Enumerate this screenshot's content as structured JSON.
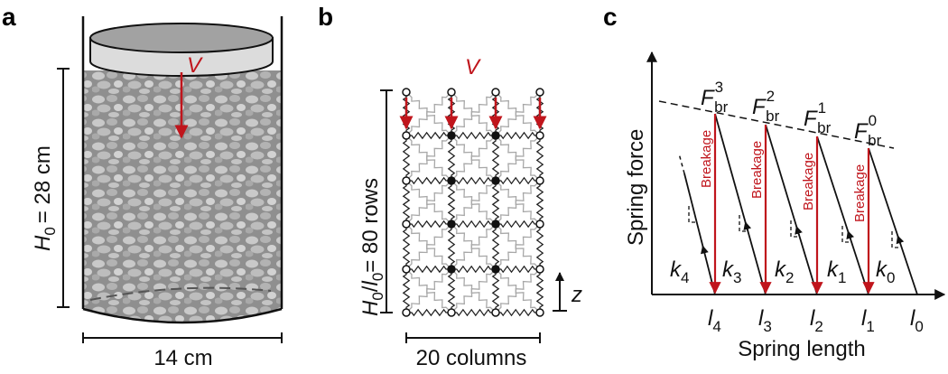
{
  "panels": {
    "a": {
      "label": "a",
      "velocity": "V",
      "height_sym": "H",
      "height_sub": "0",
      "height_val": "= 28 cm",
      "width": "14 cm"
    },
    "b": {
      "label": "b",
      "velocity": "V",
      "rows_h": "H",
      "rows_h_sub": "0",
      "rows_slash": "/",
      "rows_l": "l",
      "rows_l_sub": "0",
      "rows_rest": "= 80 rows",
      "columns": "20 columns",
      "axis_z": "z"
    },
    "c": {
      "label": "c",
      "ylabel": "Spring force",
      "xlabel": "Spring length",
      "breakage": "Breakage",
      "force_sym": "F",
      "force_sub": "br",
      "force_sups": [
        "3",
        "2",
        "1",
        "0"
      ],
      "k_sym": "k",
      "k_subs": [
        "4",
        "3",
        "2",
        "1",
        "0"
      ],
      "l_sym": "l",
      "l_subs": [
        "4",
        "3",
        "2",
        "1",
        "0"
      ]
    }
  }
}
